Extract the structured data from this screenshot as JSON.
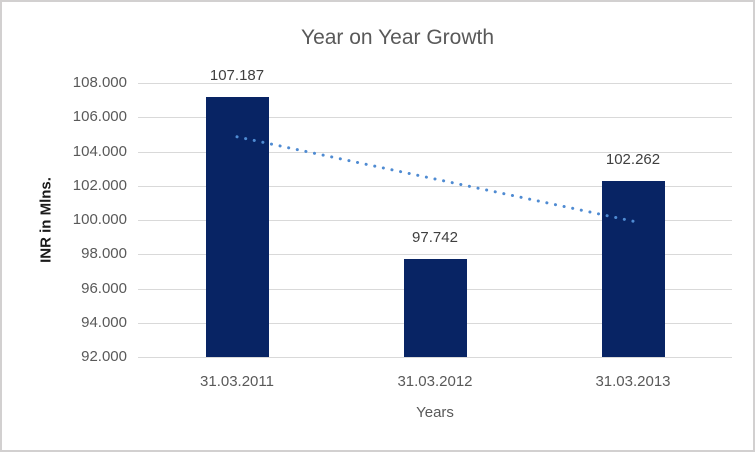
{
  "chart_data": {
    "type": "bar",
    "title": "Year on Year Growth",
    "xlabel": "Years",
    "ylabel": "INR in Mlns.",
    "categories": [
      "31.03.2011",
      "31.03.2012",
      "31.03.2013"
    ],
    "values": [
      107.187,
      97.742,
      102.262
    ],
    "data_labels": [
      "107.187",
      "97.742",
      "102.262"
    ],
    "ylim": [
      92,
      108
    ],
    "yticks": [
      {
        "value": 108,
        "label": "108.000"
      },
      {
        "value": 106,
        "label": "106.000"
      },
      {
        "value": 104,
        "label": "104.000"
      },
      {
        "value": 102,
        "label": "102.000"
      },
      {
        "value": 100,
        "label": "100.000"
      },
      {
        "value": 98,
        "label": "98.000"
      },
      {
        "value": 96,
        "label": "96.000"
      },
      {
        "value": 94,
        "label": "94.000"
      },
      {
        "value": 92,
        "label": "92.000"
      }
    ],
    "grid": true,
    "legend": "none",
    "trendline": {
      "type": "linear",
      "style": "dotted",
      "start_value": 104.86,
      "end_value": 99.93
    },
    "colors": {
      "bar": "#082464",
      "trendline": "#4f8bd2",
      "gridline": "#d9d9d9",
      "title_text": "#595959",
      "tick_text": "#595959",
      "data_label_text": "#3f3f3f",
      "y_axis_title_text": "#1a1a1a",
      "frame_border": "#d2d0d0"
    }
  }
}
